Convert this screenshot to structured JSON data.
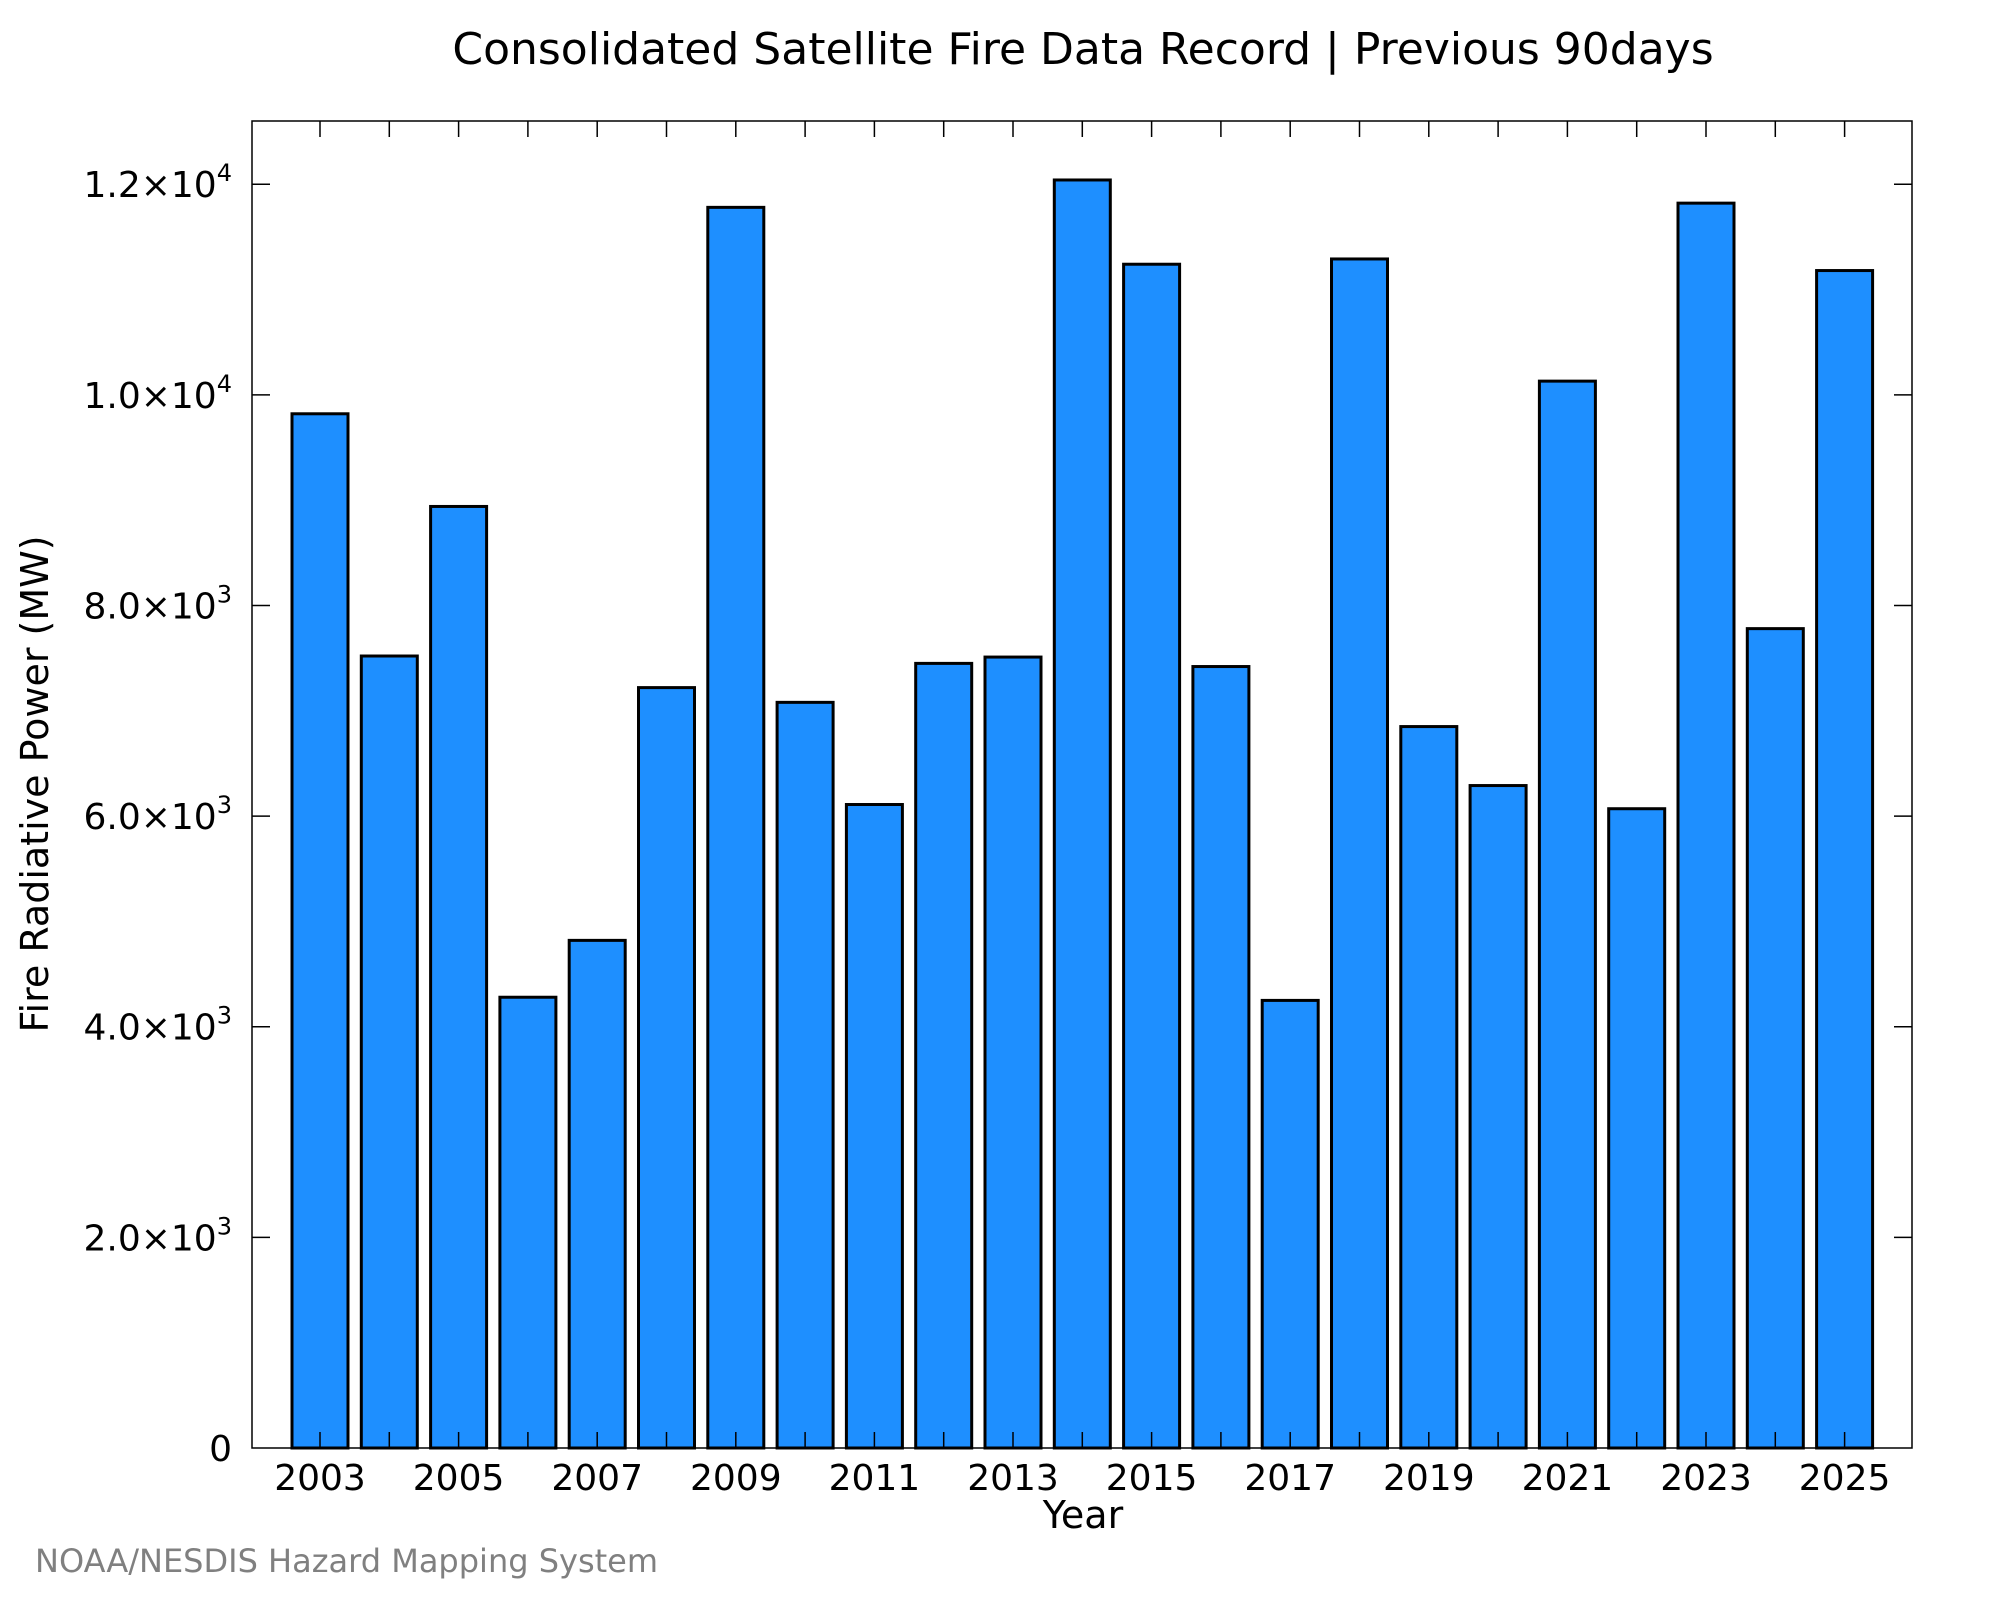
{
  "chart_data": {
    "type": "bar",
    "title": "Consolidated Satellite Fire Data Record | Previous 90days",
    "xlabel": "Year",
    "ylabel": "Fire Radiative Power (MW)",
    "categories": [
      "2003",
      "2004",
      "2005",
      "2006",
      "2007",
      "2008",
      "2009",
      "2010",
      "2011",
      "2012",
      "2013",
      "2014",
      "2015",
      "2016",
      "2017",
      "2018",
      "2019",
      "2020",
      "2021",
      "2022",
      "2023",
      "2024",
      "2025"
    ],
    "values": [
      9820,
      7520,
      8940,
      4280,
      4820,
      7220,
      11780,
      7080,
      6110,
      7450,
      7510,
      12040,
      11240,
      7420,
      4250,
      11290,
      6850,
      6290,
      10130,
      6070,
      11820,
      7780,
      11180
    ],
    "ylim": [
      0,
      12600
    ],
    "x_tick_labels": [
      "2003",
      "2005",
      "2007",
      "2009",
      "2011",
      "2013",
      "2015",
      "2017",
      "2019",
      "2021",
      "2023",
      "2025"
    ],
    "y_ticks": [
      {
        "value": 0,
        "mantissa": "0",
        "exponent": ""
      },
      {
        "value": 2000,
        "mantissa": "2.0×10",
        "exponent": "3"
      },
      {
        "value": 4000,
        "mantissa": "4.0×10",
        "exponent": "3"
      },
      {
        "value": 6000,
        "mantissa": "6.0×10",
        "exponent": "3"
      },
      {
        "value": 8000,
        "mantissa": "8.0×10",
        "exponent": "3"
      },
      {
        "value": 10000,
        "mantissa": "1.0×10",
        "exponent": "4"
      },
      {
        "value": 12000,
        "mantissa": "1.2×10",
        "exponent": "4"
      }
    ],
    "bar_color": "#1e8fff",
    "grid": false
  },
  "credit": "NOAA/NESDIS Hazard Mapping System"
}
